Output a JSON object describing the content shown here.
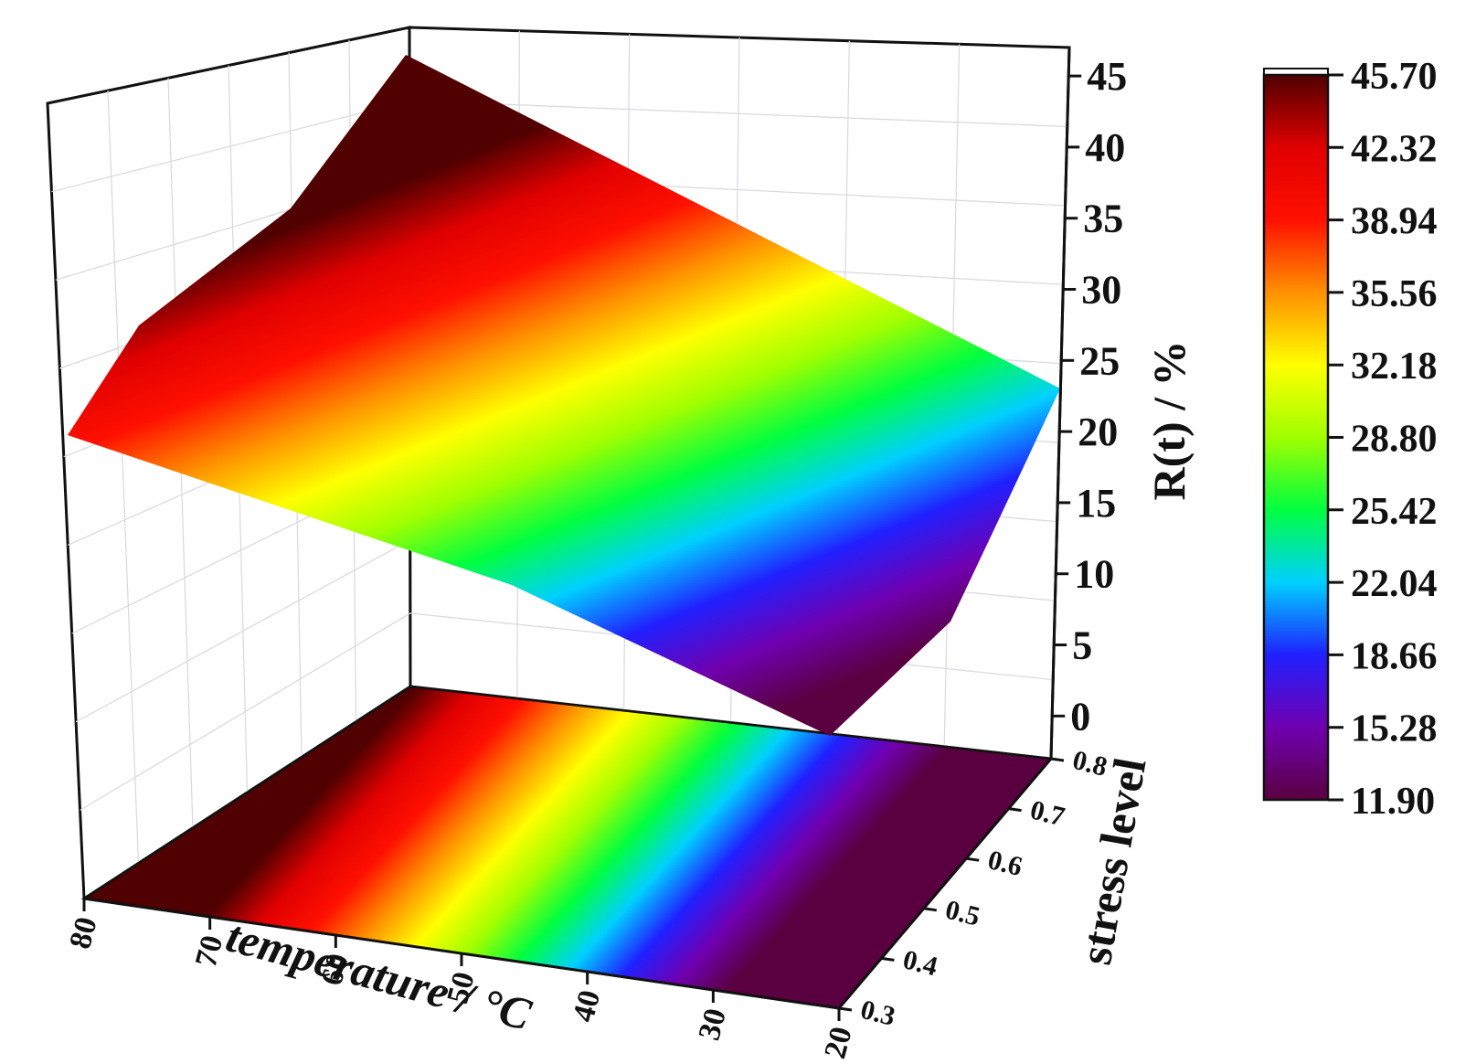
{
  "chart_data": {
    "type": "surface3d",
    "title": "",
    "xlabel": "temperature / °C",
    "ylabel": "stress level",
    "zlabel": "R(t) / %",
    "x_ticks": [
      "80",
      "70",
      "60",
      "50",
      "40",
      "30",
      "20"
    ],
    "y_ticks": [
      "0.3",
      "0.4",
      "0.5",
      "0.6",
      "0.7",
      "0.8"
    ],
    "z_ticks": [
      "45",
      "40",
      "35",
      "30",
      "25",
      "20",
      "15",
      "10",
      "5",
      "0"
    ],
    "xlim": [
      20,
      80
    ],
    "ylim": [
      0.3,
      0.8
    ],
    "zlim": [
      -3,
      47
    ],
    "colormap": {
      "name": "rainbow",
      "range": [
        11.9,
        45.7
      ],
      "tick_labels": [
        "45.70",
        "42.32",
        "38.94",
        "35.56",
        "32.18",
        "28.80",
        "25.42",
        "22.04",
        "18.66",
        "15.28",
        "11.90"
      ],
      "colors": [
        "#5a0040",
        "#7000b0",
        "#2020ff",
        "#00d0ff",
        "#00ff40",
        "#a0ff00",
        "#ffff00",
        "#ff9000",
        "#ff1000",
        "#e00000",
        "#500000"
      ]
    },
    "corner_values": [
      {
        "temperature": 80,
        "stress": 0.3,
        "R": 20.5
      },
      {
        "temperature": 80,
        "stress": 0.8,
        "R": 45.7
      },
      {
        "temperature": 20,
        "stress": 0.3,
        "R": 11.9
      },
      {
        "temperature": 20,
        "stress": 0.8,
        "R": 24.0
      }
    ],
    "grid": true,
    "projection_on_floor": true,
    "legend": "colorbar-right"
  }
}
